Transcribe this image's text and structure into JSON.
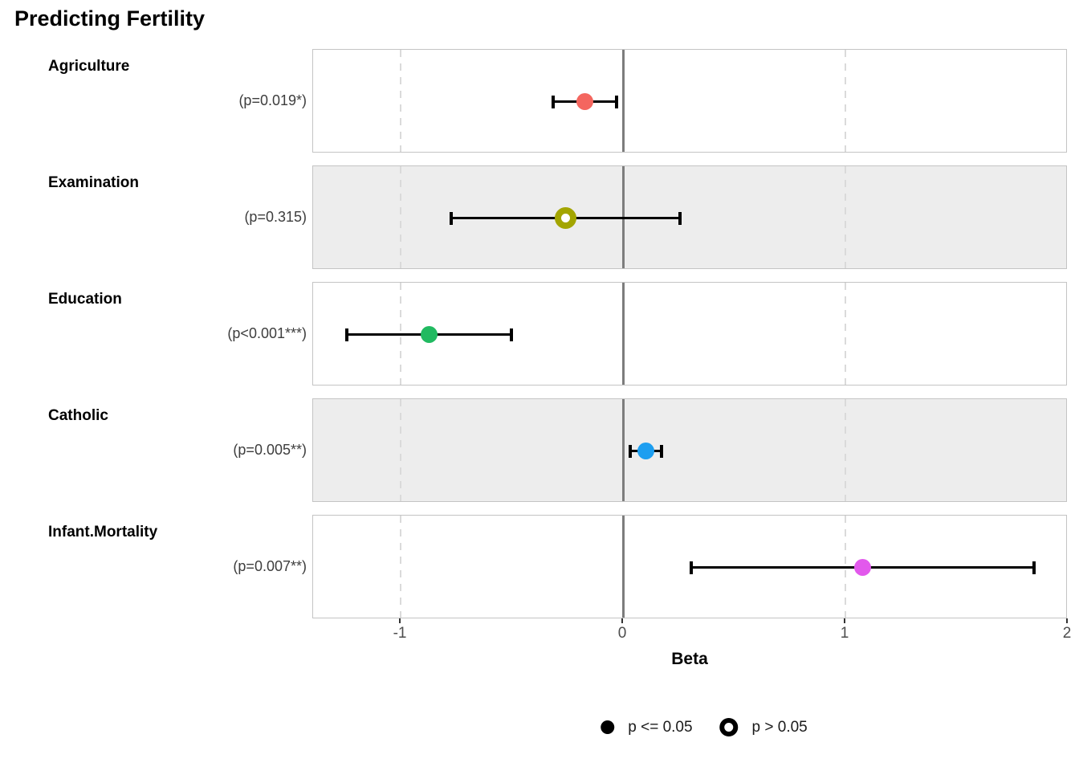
{
  "chart_data": {
    "type": "scatter",
    "subtype": "forest-coefficient-plot",
    "title": "Predicting Fertility",
    "xlabel": "Beta",
    "xlim": [
      -1.3936,
      2.0
    ],
    "x_ticks": [
      -1,
      0,
      1,
      2
    ],
    "x_tick_labels": [
      "-1",
      "0",
      "1",
      "2"
    ],
    "grid": "dashed vertical at -1 and 1, solid gray reference at 0",
    "zero_line_color": "#7d7d7d",
    "panel_border_color": "#c4c4c4",
    "panel_gray_bg": "#ededed",
    "rows": [
      {
        "term": "Agriculture",
        "p_label": "(p=0.019*)",
        "estimate": -0.172,
        "conf_low": -0.314,
        "conf_high": -0.03,
        "color": "#f4665f",
        "shape": "filled",
        "row_bg": "white"
      },
      {
        "term": "Examination",
        "p_label": "(p=0.315)",
        "estimate": -0.258,
        "conf_low": -0.771,
        "conf_high": 0.255,
        "color": "#a3a500",
        "shape": "open",
        "row_bg": "gray"
      },
      {
        "term": "Education",
        "p_label": "(p<0.001***)",
        "estimate": -0.871,
        "conf_low": -1.241,
        "conf_high": -0.501,
        "color": "#21ba61",
        "shape": "filled",
        "row_bg": "white"
      },
      {
        "term": "Catholic",
        "p_label": "(p=0.005**)",
        "estimate": 0.104,
        "conf_low": 0.033,
        "conf_high": 0.175,
        "color": "#1d9ef0",
        "shape": "filled",
        "row_bg": "gray"
      },
      {
        "term": "Infant.Mortality",
        "p_label": "(p=0.007**)",
        "estimate": 1.077,
        "conf_low": 0.306,
        "conf_high": 1.848,
        "color": "#e259ec",
        "shape": "filled",
        "row_bg": "white"
      }
    ],
    "legend": [
      {
        "marker": "filled-circle",
        "label": "p <= 0.05"
      },
      {
        "marker": "open-circle",
        "label": "p > 0.05"
      }
    ]
  }
}
